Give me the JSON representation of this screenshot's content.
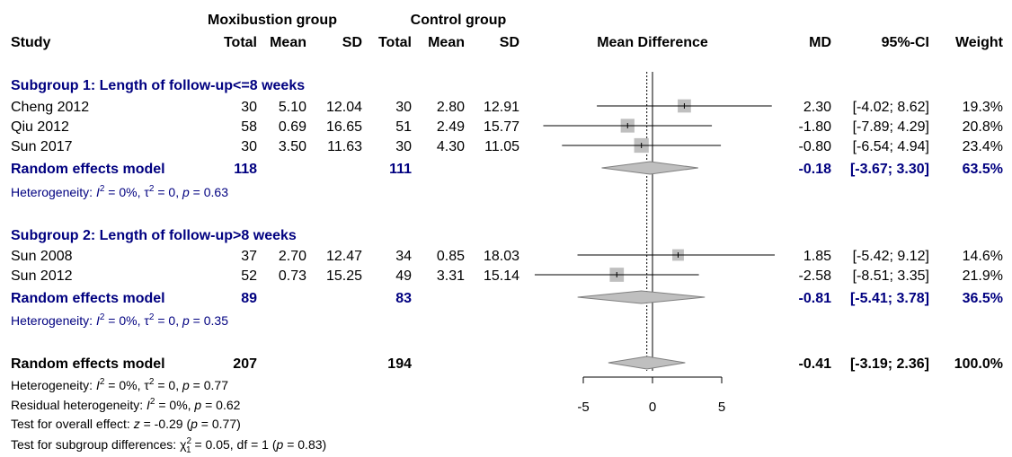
{
  "colors": {
    "subgroup": "#000080",
    "text": "#000000",
    "box": "#bfbfbf",
    "diamond": "#bfbfbf"
  },
  "headers": {
    "study": "Study",
    "group1": "Moxibustion group",
    "group2": "Control group",
    "total": "Total",
    "mean": "Mean",
    "sd": "SD",
    "plot": "Mean Difference",
    "md": "MD",
    "ci": "95%-CI",
    "weight": "Weight"
  },
  "chart_data": {
    "type": "forest",
    "xlabel": "",
    "xlim": [
      -5,
      5
    ],
    "xticks": [
      "-5",
      "0",
      "5"
    ],
    "null_line": 0,
    "subgroups": [
      {
        "title": "Subgroup 1: Length of follow-up<=8 weeks",
        "studies": [
          {
            "study": "Cheng 2012",
            "e_total": "30",
            "e_mean": "5.10",
            "e_sd": "12.04",
            "c_total": "30",
            "c_mean": "2.80",
            "c_sd": "12.91",
            "md": 2.3,
            "lower": -4.02,
            "upper": 8.62,
            "weight": 19.3,
            "md_text": "2.30",
            "ci_text": "[-4.02; 8.62]",
            "weight_text": "19.3%"
          },
          {
            "study": "Qiu 2012",
            "e_total": "58",
            "e_mean": "0.69",
            "e_sd": "16.65",
            "c_total": "51",
            "c_mean": "2.49",
            "c_sd": "15.77",
            "md": -1.8,
            "lower": -7.89,
            "upper": 4.29,
            "weight": 20.8,
            "md_text": "-1.80",
            "ci_text": "[-7.89; 4.29]",
            "weight_text": "20.8%"
          },
          {
            "study": "Sun 2017",
            "e_total": "30",
            "e_mean": "3.50",
            "e_sd": "11.63",
            "c_total": "30",
            "c_mean": "4.30",
            "c_sd": "11.05",
            "md": -0.8,
            "lower": -6.54,
            "upper": 4.94,
            "weight": 23.4,
            "md_text": "-0.80",
            "ci_text": "[-6.54; 4.94]",
            "weight_text": "23.4%"
          }
        ],
        "pooled": {
          "label": "Random effects model",
          "e_total": "118",
          "c_total": "111",
          "md": -0.18,
          "lower": -3.67,
          "upper": 3.3,
          "md_text": "-0.18",
          "ci_text": "[-3.67; 3.30]",
          "weight_text": "63.5%"
        },
        "heterogeneity": {
          "label": "Heterogeneity: ",
          "i2": " = 0%, ",
          "tau2": " = 0, ",
          "p": " = 0.63"
        }
      },
      {
        "title": "Subgroup 2: Length of follow-up>8 weeks",
        "studies": [
          {
            "study": "Sun 2008",
            "e_total": "37",
            "e_mean": "2.70",
            "e_sd": "12.47",
            "c_total": "34",
            "c_mean": "0.85",
            "c_sd": "18.03",
            "md": 1.85,
            "lower": -5.42,
            "upper": 9.12,
            "weight": 14.6,
            "md_text": "1.85",
            "ci_text": "[-5.42; 9.12]",
            "weight_text": "14.6%"
          },
          {
            "study": "Sun 2012",
            "e_total": "52",
            "e_mean": "0.73",
            "e_sd": "15.25",
            "c_total": "49",
            "c_mean": "3.31",
            "c_sd": "15.14",
            "md": -2.58,
            "lower": -8.51,
            "upper": 3.35,
            "weight": 21.9,
            "md_text": "-2.58",
            "ci_text": "[-8.51; 3.35]",
            "weight_text": "21.9%"
          }
        ],
        "pooled": {
          "label": "Random effects model",
          "e_total": "89",
          "c_total": "83",
          "md": -0.81,
          "lower": -5.41,
          "upper": 3.78,
          "md_text": "-0.81",
          "ci_text": "[-5.41; 3.78]",
          "weight_text": "36.5%"
        },
        "heterogeneity": {
          "label": "Heterogeneity: ",
          "i2": " = 0%, ",
          "tau2": " = 0, ",
          "p": " = 0.35"
        }
      }
    ],
    "overall": {
      "label": "Random effects model",
      "e_total": "207",
      "c_total": "194",
      "md": -0.41,
      "lower": -3.19,
      "upper": 2.36,
      "md_text": "-0.41",
      "ci_text": "[-3.19; 2.36]",
      "weight_text": "100.0%"
    },
    "footer": {
      "heterogeneity": {
        "label": "Heterogeneity: ",
        "i2": " = 0%, ",
        "tau2": " = 0, ",
        "p": " = 0.77"
      },
      "residual": {
        "label": "Residual heterogeneity: ",
        "i2": " = 0%, ",
        "p": " = 0.62"
      },
      "overall_effect": {
        "label": "Test for overall effect: ",
        "z": " = -0.29 (",
        "p": " = 0.77)"
      },
      "subgroup_diff": {
        "label": "Test for subgroup differences: ",
        "chi": " = 0.05, df = 1 (",
        "p": " = 0.83)"
      }
    }
  }
}
